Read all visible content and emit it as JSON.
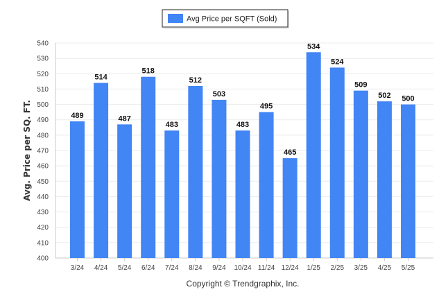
{
  "chart_data": {
    "type": "bar",
    "categories": [
      "3/24",
      "4/24",
      "5/24",
      "6/24",
      "7/24",
      "8/24",
      "9/24",
      "10/24",
      "11/24",
      "12/24",
      "1/25",
      "2/25",
      "3/25",
      "4/25",
      "5/25"
    ],
    "series": [
      {
        "name": "Avg Price per SQFT (Sold)",
        "values": [
          489,
          514,
          487,
          518,
          483,
          512,
          503,
          483,
          495,
          465,
          534,
          524,
          509,
          502,
          500
        ],
        "color": "#4285f4"
      }
    ],
    "ylabel": "Avg. Price per SQ. FT.",
    "xlabel": "",
    "ylim": [
      400,
      540
    ],
    "yticks": [
      400,
      410,
      420,
      430,
      440,
      450,
      460,
      470,
      480,
      490,
      500,
      510,
      520,
      530,
      540
    ],
    "grid": true,
    "legend_position": "top-center",
    "data_labels": true
  },
  "credit": "Copyright © Trendgraphix, Inc."
}
